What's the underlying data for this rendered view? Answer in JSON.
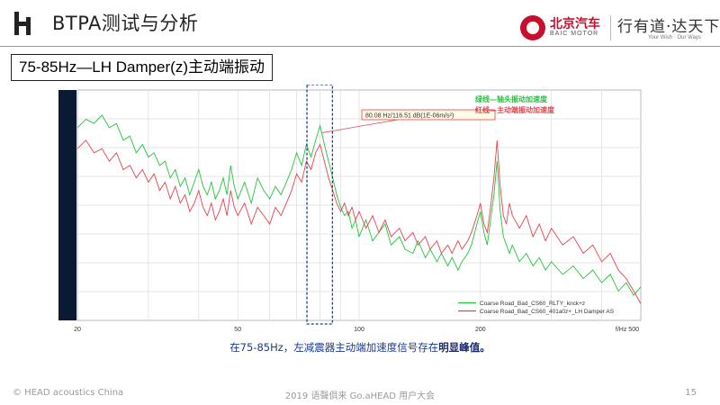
{
  "header": {
    "title": "BTPA测试与分析",
    "brand_name_cn": "北京汽车",
    "brand_name_en": "BAIC MOTOR",
    "slogan": "行有道·达天下",
    "slogan_en": "Your Wish · Our Ways"
  },
  "subtitle": "75-85Hz—LH Damper(z)主动端振动",
  "caption": {
    "prefix": "在75-85Hz，左减震器主动端加速度信号存在",
    "emphasis": "明显峰值。"
  },
  "footer": {
    "left": "© HEAD acoustics China",
    "center": "2019 语聲俱来 Go.aHEAD 用户大会",
    "page_number": "15"
  },
  "colors": {
    "green": "#22c43a",
    "red": "#e8424c",
    "axis_bar": "#0b1a33",
    "highlight_box": "#1e3f8a",
    "caption_text": "#1a3a8f"
  },
  "chart_data": {
    "type": "line",
    "x_scale": "log",
    "xlim": [
      20,
      500
    ],
    "x_ticks": [
      "20",
      "50",
      "100",
      "200"
    ],
    "x_unit_label": "f/Hz 500",
    "y_ticks_shown": false,
    "grid": true,
    "legend_position": "bottom-right",
    "color_legend": [
      {
        "text": "绿线—轴头振动加速度",
        "color": "#22c43a"
      },
      {
        "text": "红线—主动端振动加速度",
        "color": "#e8424c"
      }
    ],
    "cursor_label": "80.08 Hz/116.51 dB(1E-06m/s²)",
    "highlight_range_hz": [
      75,
      85
    ],
    "series": [
      {
        "name": "Coarse Road_Bad_CS60_RLTY_knck+z",
        "color": "#22c43a",
        "points": [
          [
            20,
            116
          ],
          [
            21,
            118
          ],
          [
            22,
            117
          ],
          [
            23,
            119
          ],
          [
            24,
            116
          ],
          [
            25,
            117
          ],
          [
            26,
            113
          ],
          [
            27,
            114
          ],
          [
            28,
            110
          ],
          [
            29,
            112
          ],
          [
            30,
            109
          ],
          [
            31,
            110
          ],
          [
            32,
            107
          ],
          [
            33,
            108
          ],
          [
            34,
            104
          ],
          [
            35,
            106
          ],
          [
            36,
            102
          ],
          [
            37,
            104
          ],
          [
            38,
            100
          ],
          [
            39,
            103
          ],
          [
            40,
            106
          ],
          [
            41,
            102
          ],
          [
            42,
            100
          ],
          [
            43,
            103
          ],
          [
            44,
            99
          ],
          [
            45,
            101
          ],
          [
            46,
            104
          ],
          [
            47,
            100
          ],
          [
            48,
            107
          ],
          [
            49,
            102
          ],
          [
            50,
            99
          ],
          [
            52,
            103
          ],
          [
            54,
            98
          ],
          [
            56,
            104
          ],
          [
            58,
            101
          ],
          [
            60,
            99
          ],
          [
            62,
            102
          ],
          [
            64,
            100
          ],
          [
            66,
            103
          ],
          [
            68,
            106
          ],
          [
            70,
            110
          ],
          [
            72,
            107
          ],
          [
            74,
            112
          ],
          [
            76,
            109
          ],
          [
            78,
            113
          ],
          [
            80,
            116.5
          ],
          [
            82,
            112
          ],
          [
            84,
            108
          ],
          [
            86,
            104
          ],
          [
            88,
            100
          ],
          [
            90,
            97
          ],
          [
            92,
            95
          ],
          [
            94,
            96
          ],
          [
            96,
            92
          ],
          [
            98,
            94
          ],
          [
            100,
            90
          ],
          [
            104,
            94
          ],
          [
            108,
            89
          ],
          [
            112,
            91
          ],
          [
            116,
            93
          ],
          [
            120,
            88
          ],
          [
            126,
            90
          ],
          [
            130,
            87
          ],
          [
            136,
            86
          ],
          [
            140,
            89
          ],
          [
            146,
            85
          ],
          [
            150,
            87
          ],
          [
            156,
            84
          ],
          [
            160,
            86
          ],
          [
            166,
            83
          ],
          [
            170,
            85
          ],
          [
            176,
            82
          ],
          [
            180,
            84
          ],
          [
            186,
            86
          ],
          [
            190,
            88
          ],
          [
            196,
            93
          ],
          [
            200,
            96
          ],
          [
            204,
            91
          ],
          [
            208,
            88
          ],
          [
            212,
            94
          ],
          [
            216,
            100
          ],
          [
            220,
            108
          ],
          [
            224,
            96
          ],
          [
            228,
            90
          ],
          [
            232,
            88
          ],
          [
            236,
            86
          ],
          [
            240,
            88
          ],
          [
            250,
            84
          ],
          [
            260,
            86
          ],
          [
            270,
            83
          ],
          [
            280,
            85
          ],
          [
            290,
            82
          ],
          [
            300,
            84
          ],
          [
            320,
            81
          ],
          [
            340,
            83
          ],
          [
            360,
            80
          ],
          [
            380,
            82
          ],
          [
            400,
            79
          ],
          [
            420,
            81
          ],
          [
            440,
            77
          ],
          [
            460,
            79
          ],
          [
            480,
            76
          ],
          [
            500,
            78
          ]
        ]
      },
      {
        "name": "Coarse Road_Bad_CS60_401a0z+_LH Damper AS",
        "color": "#e8424c",
        "points": [
          [
            20,
            111
          ],
          [
            21,
            113
          ],
          [
            22,
            110
          ],
          [
            23,
            111
          ],
          [
            24,
            108
          ],
          [
            25,
            110
          ],
          [
            26,
            106
          ],
          [
            27,
            107
          ],
          [
            28,
            104
          ],
          [
            29,
            106
          ],
          [
            30,
            103
          ],
          [
            31,
            105
          ],
          [
            32,
            101
          ],
          [
            33,
            103
          ],
          [
            34,
            99
          ],
          [
            35,
            102
          ],
          [
            36,
            98
          ],
          [
            37,
            100
          ],
          [
            38,
            96
          ],
          [
            39,
            98
          ],
          [
            40,
            101
          ],
          [
            41,
            97
          ],
          [
            42,
            95
          ],
          [
            43,
            98
          ],
          [
            44,
            94
          ],
          [
            45,
            96
          ],
          [
            46,
            99
          ],
          [
            47,
            95
          ],
          [
            48,
            101
          ],
          [
            49,
            97
          ],
          [
            50,
            95
          ],
          [
            52,
            98
          ],
          [
            54,
            93
          ],
          [
            56,
            97
          ],
          [
            58,
            95
          ],
          [
            60,
            93
          ],
          [
            62,
            97
          ],
          [
            64,
            95
          ],
          [
            66,
            98
          ],
          [
            68,
            101
          ],
          [
            70,
            105
          ],
          [
            72,
            103
          ],
          [
            74,
            108
          ],
          [
            76,
            106
          ],
          [
            78,
            110
          ],
          [
            80,
            112
          ],
          [
            82,
            108
          ],
          [
            84,
            104
          ],
          [
            86,
            101
          ],
          [
            88,
            98
          ],
          [
            90,
            96
          ],
          [
            92,
            98
          ],
          [
            94,
            95
          ],
          [
            96,
            97
          ],
          [
            98,
            94
          ],
          [
            100,
            96
          ],
          [
            104,
            92
          ],
          [
            108,
            95
          ],
          [
            112,
            91
          ],
          [
            116,
            94
          ],
          [
            120,
            90
          ],
          [
            126,
            92
          ],
          [
            130,
            89
          ],
          [
            136,
            91
          ],
          [
            140,
            88
          ],
          [
            146,
            90
          ],
          [
            150,
            87
          ],
          [
            156,
            89
          ],
          [
            160,
            86
          ],
          [
            166,
            88
          ],
          [
            170,
            86
          ],
          [
            176,
            89
          ],
          [
            180,
            87
          ],
          [
            186,
            89
          ],
          [
            190,
            91
          ],
          [
            196,
            95
          ],
          [
            200,
            98
          ],
          [
            204,
            93
          ],
          [
            208,
            91
          ],
          [
            212,
            97
          ],
          [
            216,
            104
          ],
          [
            220,
            113
          ],
          [
            224,
            102
          ],
          [
            228,
            95
          ],
          [
            232,
            93
          ],
          [
            236,
            98
          ],
          [
            240,
            95
          ],
          [
            250,
            92
          ],
          [
            260,
            95
          ],
          [
            270,
            90
          ],
          [
            280,
            93
          ],
          [
            290,
            89
          ],
          [
            300,
            92
          ],
          [
            320,
            88
          ],
          [
            340,
            90
          ],
          [
            360,
            86
          ],
          [
            380,
            88
          ],
          [
            400,
            84
          ],
          [
            420,
            86
          ],
          [
            440,
            82
          ],
          [
            460,
            80
          ],
          [
            480,
            77
          ],
          [
            500,
            74
          ]
        ]
      }
    ]
  }
}
